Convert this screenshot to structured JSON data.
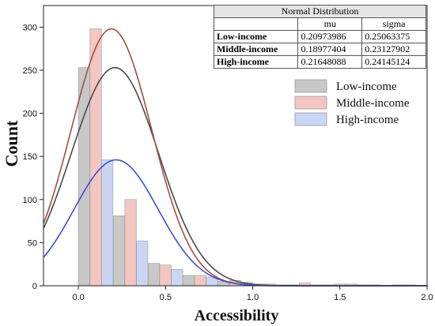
{
  "chart_data": {
    "type": "bar",
    "xlabel": "Accessibility",
    "ylabel": "Count",
    "xlim": [
      -0.2,
      2.0
    ],
    "ylim": [
      0,
      325
    ],
    "x_ticks": [
      "0.0",
      "0.5",
      "1.0",
      "1.5",
      "2.0"
    ],
    "y_ticks": [
      "0",
      "50",
      "100",
      "150",
      "200",
      "250",
      "300"
    ],
    "bin_width": 0.2,
    "series": [
      {
        "name": "Low-income",
        "color": "#c8c8c8",
        "bins": [
          {
            "start": 0.0,
            "value": 253
          },
          {
            "start": 0.2,
            "value": 81
          },
          {
            "start": 0.4,
            "value": 26
          },
          {
            "start": 0.6,
            "value": 12
          },
          {
            "start": 0.8,
            "value": 5
          },
          {
            "start": 1.0,
            "value": 2
          },
          {
            "start": 1.2,
            "value": 1
          },
          {
            "start": 1.4,
            "value": 1
          },
          {
            "start": 1.6,
            "value": 1
          },
          {
            "start": 1.8,
            "value": 1
          }
        ]
      },
      {
        "name": "Middle-income",
        "color": "#f4c6c2",
        "bins": [
          {
            "start": 0.0,
            "value": 298
          },
          {
            "start": 0.2,
            "value": 100
          },
          {
            "start": 0.4,
            "value": 24
          },
          {
            "start": 0.6,
            "value": 12
          },
          {
            "start": 0.8,
            "value": 6
          },
          {
            "start": 1.0,
            "value": 2
          },
          {
            "start": 1.2,
            "value": 3
          },
          {
            "start": 1.4,
            "value": 2
          },
          {
            "start": 1.6,
            "value": 1
          },
          {
            "start": 1.8,
            "value": 1
          }
        ]
      },
      {
        "name": "High-income",
        "color": "#c9d7f5",
        "bins": [
          {
            "start": 0.0,
            "value": 146
          },
          {
            "start": 0.2,
            "value": 52
          },
          {
            "start": 0.4,
            "value": 19
          },
          {
            "start": 0.6,
            "value": 10
          },
          {
            "start": 0.8,
            "value": 4
          },
          {
            "start": 1.0,
            "value": 1
          },
          {
            "start": 1.2,
            "value": 1
          },
          {
            "start": 1.4,
            "value": 2
          },
          {
            "start": 1.6,
            "value": 0
          },
          {
            "start": 1.8,
            "value": 0
          }
        ]
      }
    ],
    "fit_curves": [
      {
        "series": "Low-income",
        "color": "#4a4a4a",
        "mu": 0.20973986,
        "sigma": 0.25063375,
        "peak": 253
      },
      {
        "series": "Middle-income",
        "color": "#a34e3e",
        "mu": 0.18977404,
        "sigma": 0.23127902,
        "peak": 298
      },
      {
        "series": "High-income",
        "color": "#3b4fd0",
        "mu": 0.21648088,
        "sigma": 0.24145124,
        "peak": 146
      }
    ],
    "legend": {
      "placement": "top-right"
    }
  },
  "stats_table": {
    "title": "Normal Distribution",
    "col_mu": "mu",
    "col_sigma": "sigma",
    "rows": [
      {
        "label": "Low-income",
        "mu": "0.20973986",
        "sigma": "0.25063375"
      },
      {
        "label": "Middle-income",
        "mu": "0.18977404",
        "sigma": "0.23127902"
      },
      {
        "label": "High-income",
        "mu": "0.21648088",
        "sigma": "0.24145124"
      }
    ]
  }
}
